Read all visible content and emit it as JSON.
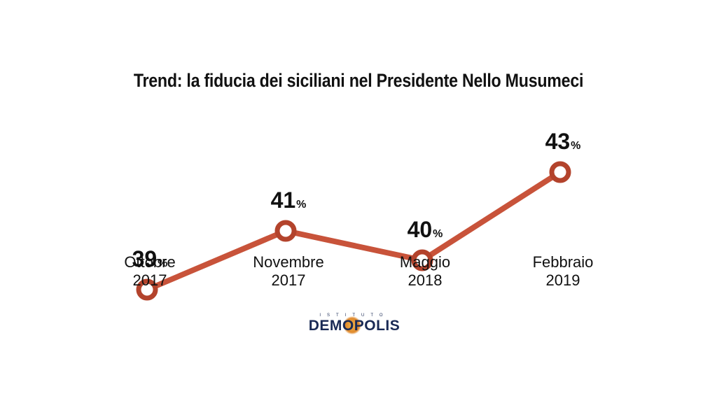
{
  "chart_data": {
    "type": "line",
    "title": "Trend: la fiducia dei siciliani nel Presidente Nello Musumeci",
    "categories": [
      [
        "Ottobre",
        "2017"
      ],
      [
        "Novembre",
        "2017"
      ],
      [
        "Maggio",
        "2018"
      ],
      [
        "Febbraio",
        "2019"
      ]
    ],
    "series": [
      {
        "values": [
          39,
          41,
          40,
          43
        ]
      }
    ],
    "value_unit": "%",
    "ylim": [
      36,
      46
    ],
    "grid": false,
    "legend": "none",
    "colors": {
      "line": "#c8533a",
      "marker_stroke": "#b3432c",
      "marker_fill": "#ffffff",
      "text": "#111111"
    }
  },
  "logo": {
    "small_text": "ISTITUTO",
    "main_text": "DEMOPOLIS"
  }
}
